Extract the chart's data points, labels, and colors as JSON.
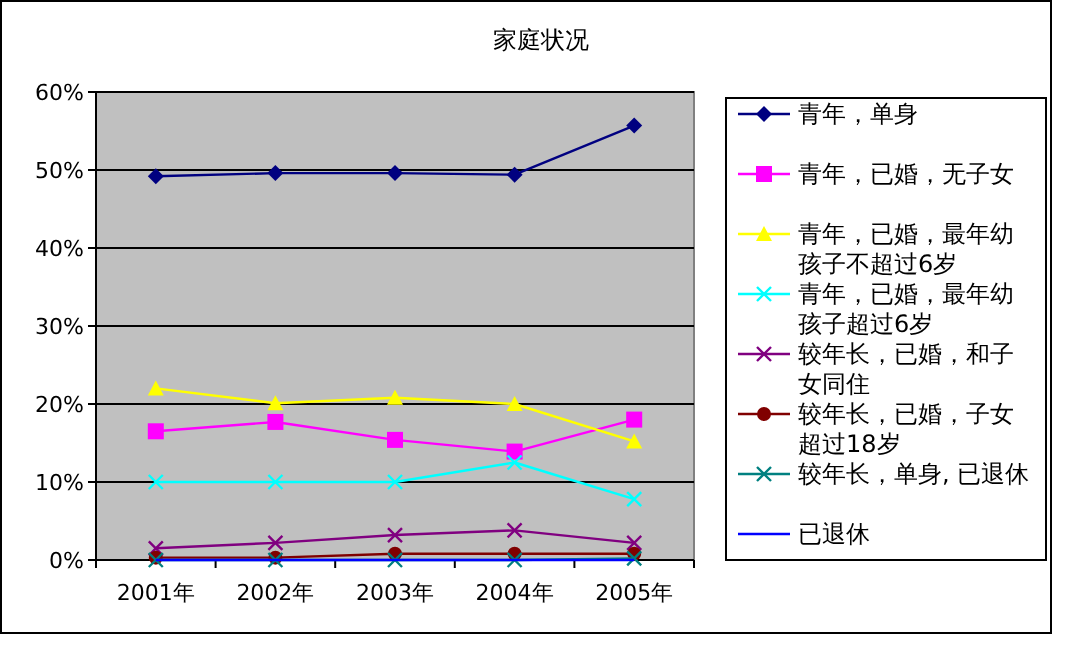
{
  "chart_data": {
    "type": "line",
    "title": "家庭状况",
    "categories": [
      "2001年",
      "2002年",
      "2003年",
      "2004年",
      "2005年"
    ],
    "ylim": [
      0,
      60
    ],
    "yticks": [
      {
        "value": 0,
        "label": "0%"
      },
      {
        "value": 10,
        "label": "10%"
      },
      {
        "value": 20,
        "label": "20%"
      },
      {
        "value": 30,
        "label": "30%"
      },
      {
        "value": 40,
        "label": "40%"
      },
      {
        "value": 50,
        "label": "50%"
      },
      {
        "value": 60,
        "label": "60%"
      }
    ],
    "grid": "y",
    "legend": "right",
    "series": [
      {
        "name": "青年，单身",
        "color": "#000080",
        "marker": "diamond",
        "values": [
          49.2,
          49.6,
          49.6,
          49.4,
          55.7
        ]
      },
      {
        "name": "青年，已婚，无子女",
        "color": "#ff00ff",
        "marker": "square",
        "values": [
          16.5,
          17.7,
          15.4,
          13.9,
          18
        ]
      },
      {
        "name": "青年，已婚，最年幼孩子不超过6岁",
        "color": "#ffff00",
        "marker": "triangle",
        "values": [
          22,
          20.1,
          20.8,
          20,
          15.2
        ]
      },
      {
        "name": "青年，已婚，最年幼孩子超过6岁",
        "color": "#00ffff",
        "marker": "cross",
        "values": [
          10,
          10,
          10,
          12.5,
          7.8
        ]
      },
      {
        "name": "较年长，已婚，和子女同住",
        "color": "#800080",
        "marker": "cross",
        "values": [
          1.5,
          2.2,
          3.2,
          3.8,
          2.2
        ]
      },
      {
        "name": "较年长，已婚，子女超过18岁",
        "color": "#800000",
        "marker": "circle",
        "values": [
          0.3,
          0.3,
          0.8,
          0.8,
          0.8
        ]
      },
      {
        "name": "较年长，单身, 已退休",
        "color": "#008080",
        "marker": "cross",
        "values": [
          0,
          0,
          0,
          0,
          0.2
        ]
      },
      {
        "name": "已退休",
        "color": "#0000ff",
        "marker": "none",
        "values": [
          0,
          0,
          0,
          0,
          0
        ]
      }
    ]
  }
}
